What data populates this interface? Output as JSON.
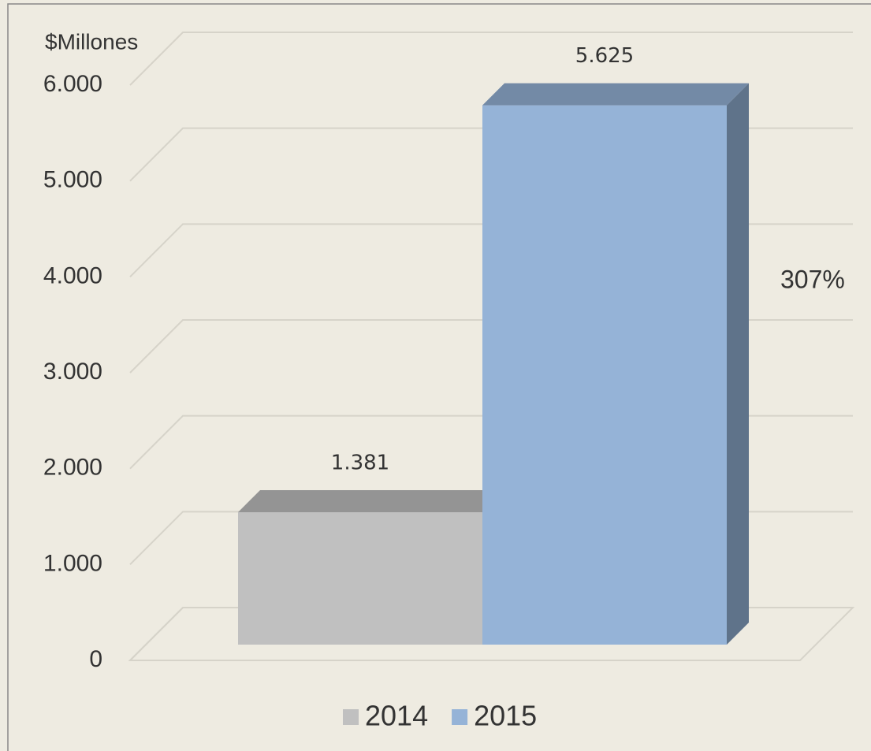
{
  "chart_data": {
    "type": "bar3d",
    "y_axis_label": "$Millones",
    "categories": [
      null
    ],
    "series": [
      {
        "name": "2014",
        "color": "#c0c0c0",
        "values": [
          1381
        ],
        "value_labels": [
          "1.381"
        ]
      },
      {
        "name": "2015",
        "color": "#95b3d7",
        "values": [
          5625
        ],
        "value_labels": [
          "5.625"
        ]
      }
    ],
    "annotation": "307%",
    "ylim": [
      0,
      6000
    ],
    "yticks": [
      0,
      {
        "value": 1000,
        "label": "1.000"
      },
      {
        "value": 2000,
        "label": "2.000"
      },
      {
        "value": 3000,
        "label": "3.000"
      },
      {
        "value": 4000,
        "label": "4.000"
      },
      {
        "value": 5000,
        "label": "5.000"
      },
      {
        "value": 6000,
        "label": "6.000"
      }
    ],
    "grid": true,
    "legend": "bottom"
  }
}
